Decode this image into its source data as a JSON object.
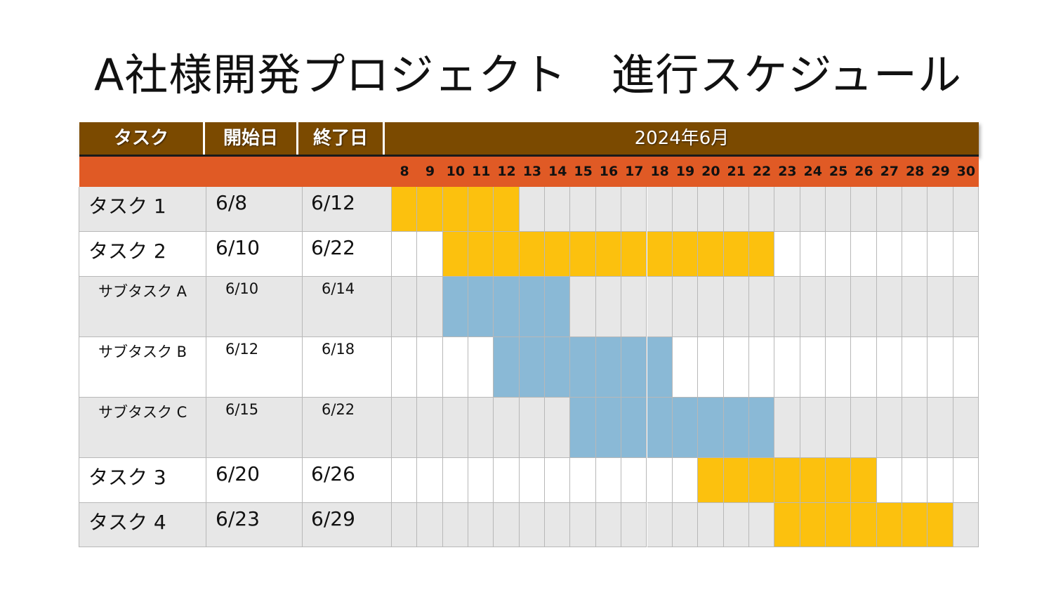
{
  "title": "A社様開発プロジェクト　進行スケジュール",
  "header": {
    "task": "タスク",
    "start": "開始日",
    "end": "終了日",
    "month": "2024年6月"
  },
  "days": [
    "8",
    "9",
    "10",
    "11",
    "12",
    "13",
    "14",
    "15",
    "16",
    "17",
    "18",
    "19",
    "20",
    "21",
    "22",
    "23",
    "24",
    "25",
    "26",
    "27",
    "28",
    "29",
    "30"
  ],
  "colors": {
    "header_bg": "#7b4a00",
    "days_bg": "#e05a25",
    "task_bar": "#fcc10e",
    "subtask_bar": "#8ab9d6",
    "row_shaded": "#e7e7e7",
    "row_plain": "#ffffff"
  },
  "rows": [
    {
      "name": "タスク 1",
      "start": "6/8",
      "end": "6/12",
      "kind": "task",
      "from": 8,
      "to": 12
    },
    {
      "name": "タスク 2",
      "start": "6/10",
      "end": "6/22",
      "kind": "task",
      "from": 10,
      "to": 22
    },
    {
      "name": "サブタスク A",
      "start": "6/10",
      "end": "6/14",
      "kind": "subtask",
      "from": 10,
      "to": 14
    },
    {
      "name": "サブタスク B",
      "start": "6/12",
      "end": "6/18",
      "kind": "subtask",
      "from": 12,
      "to": 18
    },
    {
      "name": "サブタスク C",
      "start": "6/15",
      "end": "6/22",
      "kind": "subtask",
      "from": 15,
      "to": 22
    },
    {
      "name": "タスク 3",
      "start": "6/20",
      "end": "6/26",
      "kind": "task",
      "from": 20,
      "to": 26
    },
    {
      "name": "タスク 4",
      "start": "6/23",
      "end": "6/29",
      "kind": "task",
      "from": 23,
      "to": 29
    }
  ]
}
